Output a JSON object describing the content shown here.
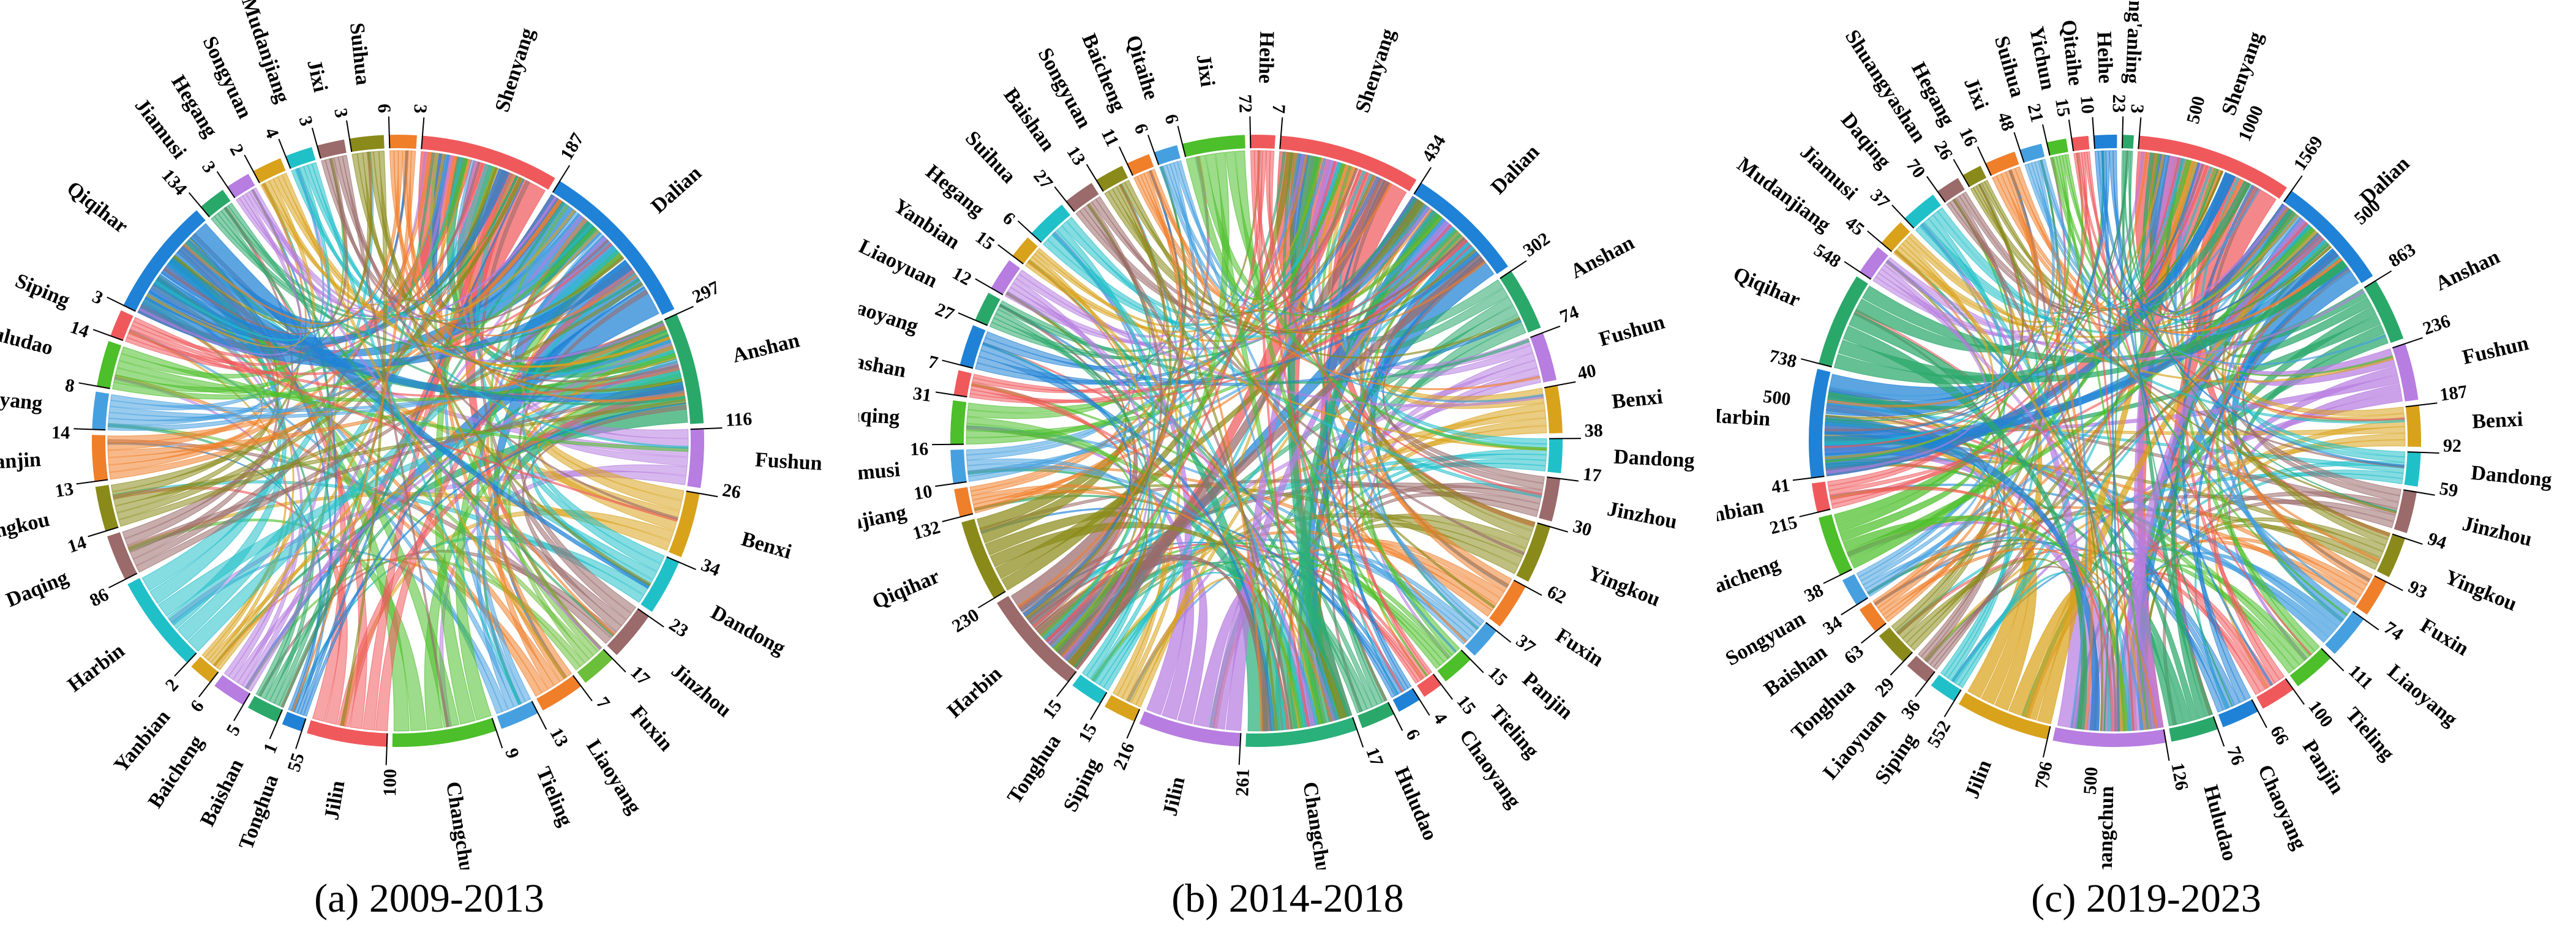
{
  "figure_title": "",
  "chart_data": [
    {
      "type": "chord",
      "caption": "(a) 2009-2013",
      "title": "2009-2013",
      "nodes": [
        {
          "name": "Shenyang",
          "value": 187,
          "color": "#f0595c"
        },
        {
          "name": "Dalian",
          "value": 297,
          "color": "#1f82d6"
        },
        {
          "name": "Anshan",
          "value": 116,
          "color": "#2aa86a"
        },
        {
          "name": "Fushun",
          "value": 26,
          "color": "#b77de0"
        },
        {
          "name": "Benxi",
          "value": 34,
          "color": "#d9a21b"
        },
        {
          "name": "Dandong",
          "value": 23,
          "color": "#20c0c9"
        },
        {
          "name": "Jinzhou",
          "value": 17,
          "color": "#9b6a6a"
        },
        {
          "name": "Fuxin",
          "value": 7,
          "color": "#6bbf3a"
        },
        {
          "name": "Liaoyang",
          "value": 13,
          "color": "#f07f2a"
        },
        {
          "name": "Tieling",
          "value": 9,
          "color": "#46a0e0"
        },
        {
          "name": "Changchun",
          "value": 100,
          "color": "#4cbf2a"
        },
        {
          "name": "Jilin",
          "value": 55,
          "color": "#f0595c"
        },
        {
          "name": "Tonghua",
          "value": 1,
          "color": "#1f82d6"
        },
        {
          "name": "Baishan",
          "value": 5,
          "color": "#2aa86a"
        },
        {
          "name": "Baicheng",
          "value": 6,
          "color": "#b77de0"
        },
        {
          "name": "Yanbian",
          "value": 2,
          "color": "#d9a21b"
        },
        {
          "name": "Harbin",
          "value": 86,
          "color": "#20c0c9"
        },
        {
          "name": "Daqing",
          "value": 14,
          "color": "#9b6a6a"
        },
        {
          "name": "Yingkou",
          "value": 13,
          "color": "#8a8a1a"
        },
        {
          "name": "Panjin",
          "value": 14,
          "color": "#f07f2a"
        },
        {
          "name": "Chaoyang",
          "value": 8,
          "color": "#46a0e0"
        },
        {
          "name": "Huludao",
          "value": 14,
          "color": "#4cbf2a"
        },
        {
          "name": "Siping",
          "value": 3,
          "color": "#f0595c"
        },
        {
          "name": "Qiqihar",
          "value": 134,
          "color": "#1f82d6"
        },
        {
          "name": "Jiamusi",
          "value": 3,
          "color": "#2aa86a"
        },
        {
          "name": "Hegang",
          "value": 2,
          "color": "#b77de0"
        },
        {
          "name": "Songyuan",
          "value": 4,
          "color": "#d9a21b"
        },
        {
          "name": "Mudanjiang",
          "value": 3,
          "color": "#20c0c9"
        },
        {
          "name": "Jixi",
          "value": 3,
          "color": "#9b6a6a"
        },
        {
          "name": "Suihua",
          "value": 6,
          "color": "#8a8a1a"
        },
        {
          "name": "",
          "value": 3,
          "color": "#f07f2a"
        }
      ],
      "scale_ticks": []
    },
    {
      "type": "chord",
      "caption": "(b) 2014-2018",
      "title": "2014-2018",
      "nodes": [
        {
          "name": "Shenyang",
          "value": 434,
          "color": "#f0595c"
        },
        {
          "name": "Dalian",
          "value": 302,
          "color": "#1f82d6"
        },
        {
          "name": "Anshan",
          "value": 74,
          "color": "#2aa86a"
        },
        {
          "name": "Fushun",
          "value": 40,
          "color": "#b77de0"
        },
        {
          "name": "Benxi",
          "value": 38,
          "color": "#d9a21b"
        },
        {
          "name": "Dandong",
          "value": 17,
          "color": "#20c0c9"
        },
        {
          "name": "Jinzhou",
          "value": 30,
          "color": "#9b6a6a"
        },
        {
          "name": "Yingkou",
          "value": 62,
          "color": "#8a8a1a"
        },
        {
          "name": "Fuxin",
          "value": 37,
          "color": "#f07f2a"
        },
        {
          "name": "Panjin",
          "value": 15,
          "color": "#46a0e0"
        },
        {
          "name": "Tieling",
          "value": 15,
          "color": "#4cbf2a"
        },
        {
          "name": "Chaoyang",
          "value": 4,
          "color": "#f0595c"
        },
        {
          "name": "",
          "value": 6,
          "color": "#1f82d6"
        },
        {
          "name": "Huludao",
          "value": 17,
          "color": "#2aa86a"
        },
        {
          "name": "Changchun",
          "value": 261,
          "color": "#2ab07a"
        },
        {
          "name": "Jilin",
          "value": 216,
          "color": "#b77de0"
        },
        {
          "name": "Siping",
          "value": 15,
          "color": "#d9a21b"
        },
        {
          "name": "Tonghua",
          "value": 15,
          "color": "#20c0c9"
        },
        {
          "name": "Harbin",
          "value": 230,
          "color": "#9b6a6a"
        },
        {
          "name": "Qiqihar",
          "value": 132,
          "color": "#8a8a1a"
        },
        {
          "name": "Mudanjiang",
          "value": 10,
          "color": "#f07f2a"
        },
        {
          "name": "Jiamusi",
          "value": 16,
          "color": "#46a0e0"
        },
        {
          "name": "Daqing",
          "value": 31,
          "color": "#4cbf2a"
        },
        {
          "name": "Shuangyashan",
          "value": 7,
          "color": "#f0595c"
        },
        {
          "name": "Liaoyang",
          "value": 27,
          "color": "#1f82d6"
        },
        {
          "name": "Liaoyuan",
          "value": 12,
          "color": "#2aa86a"
        },
        {
          "name": "Yanbian",
          "value": 15,
          "color": "#b77de0"
        },
        {
          "name": "Hegang",
          "value": 6,
          "color": "#d9a21b"
        },
        {
          "name": "Suihua",
          "value": 27,
          "color": "#20c0c9"
        },
        {
          "name": "Baishan",
          "value": 13,
          "color": "#9b6a6a"
        },
        {
          "name": "Songyuan",
          "value": 11,
          "color": "#8a8a1a"
        },
        {
          "name": "Baicheng",
          "value": 6,
          "color": "#f07f2a"
        },
        {
          "name": "Qitaihe",
          "value": 6,
          "color": "#46a0e0"
        },
        {
          "name": "Jixi",
          "value": 72,
          "color": "#4cbf2a"
        },
        {
          "name": "Heihe",
          "value": 7,
          "color": "#f0595c"
        }
      ],
      "scale_ticks": []
    },
    {
      "type": "chord",
      "caption": "(c) 2019-2023",
      "title": "2019-2023",
      "nodes": [
        {
          "name": "Shenyang",
          "value": 1569,
          "color": "#f0595c"
        },
        {
          "name": "Dalian",
          "value": 863,
          "color": "#1f82d6"
        },
        {
          "name": "Anshan",
          "value": 236,
          "color": "#2aa86a"
        },
        {
          "name": "Fushun",
          "value": 187,
          "color": "#b77de0"
        },
        {
          "name": "Benxi",
          "value": 92,
          "color": "#d9a21b"
        },
        {
          "name": "Dandong",
          "value": 59,
          "color": "#20c0c9"
        },
        {
          "name": "Jinzhou",
          "value": 94,
          "color": "#9b6a6a"
        },
        {
          "name": "Yingkou",
          "value": 93,
          "color": "#8a8a1a"
        },
        {
          "name": "Fuxin",
          "value": 74,
          "color": "#f07f2a"
        },
        {
          "name": "Liaoyang",
          "value": 111,
          "color": "#46a0e0"
        },
        {
          "name": "Tieling",
          "value": 100,
          "color": "#4cbf2a"
        },
        {
          "name": "Panjin",
          "value": 66,
          "color": "#f0595c"
        },
        {
          "name": "Chaoyang",
          "value": 76,
          "color": "#1f82d6"
        },
        {
          "name": "Huludao",
          "value": 126,
          "color": "#2aa86a"
        },
        {
          "name": "Changchun",
          "value": 796,
          "color": "#b77de0"
        },
        {
          "name": "Jilin",
          "value": 552,
          "color": "#d9a21b"
        },
        {
          "name": "Siping",
          "value": 36,
          "color": "#20c0c9"
        },
        {
          "name": "Liaoyuan",
          "value": 29,
          "color": "#9b6a6a"
        },
        {
          "name": "Tonghua",
          "value": 63,
          "color": "#8a8a1a"
        },
        {
          "name": "Baishan",
          "value": 34,
          "color": "#f07f2a"
        },
        {
          "name": "Songyuan",
          "value": 38,
          "color": "#46a0e0"
        },
        {
          "name": "Baicheng",
          "value": 215,
          "color": "#4cbf2a"
        },
        {
          "name": "Yanbian",
          "value": 41,
          "color": "#f0595c"
        },
        {
          "name": "Harbin",
          "value": 738,
          "color": "#1f82d6"
        },
        {
          "name": "Qiqihar",
          "value": 548,
          "color": "#2aa86a"
        },
        {
          "name": "Mudanjiang",
          "value": 45,
          "color": "#b77de0"
        },
        {
          "name": "Jiamusi",
          "value": 37,
          "color": "#d9a21b"
        },
        {
          "name": "Daqing",
          "value": 70,
          "color": "#20c0c9"
        },
        {
          "name": "Shuangyashan",
          "value": 26,
          "color": "#9b6a6a"
        },
        {
          "name": "Hegang",
          "value": 16,
          "color": "#8a8a1a"
        },
        {
          "name": "Jixi",
          "value": 48,
          "color": "#f07f2a"
        },
        {
          "name": "Suihua",
          "value": 21,
          "color": "#46a0e0"
        },
        {
          "name": "Yichun",
          "value": 15,
          "color": "#4cbf2a"
        },
        {
          "name": "Qitaihe",
          "value": 10,
          "color": "#f0595c"
        },
        {
          "name": "Heihe",
          "value": 23,
          "color": "#1f82d6"
        },
        {
          "name": "Daxing'anling",
          "value": 3,
          "color": "#2aa86a"
        }
      ],
      "scale_ticks": [
        {
          "node": "Shenyang",
          "label": "500",
          "value": 500
        },
        {
          "node": "Shenyang",
          "label": "1000",
          "value": 1000
        },
        {
          "node": "Dalian",
          "label": "500",
          "value": 500
        },
        {
          "node": "Harbin",
          "label": "500",
          "value": 500
        },
        {
          "node": "Changchun",
          "label": "500",
          "value": 500
        }
      ]
    }
  ]
}
